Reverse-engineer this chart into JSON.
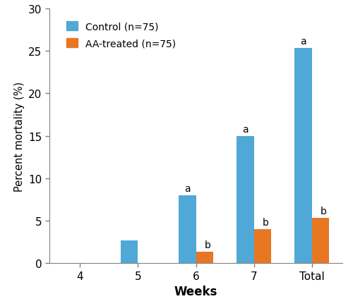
{
  "categories": [
    "4",
    "5",
    "6",
    "7",
    "Total"
  ],
  "control_values": [
    0,
    2.67,
    8.0,
    15.0,
    25.33
  ],
  "aa_values": [
    0,
    0,
    1.33,
    4.0,
    5.33
  ],
  "control_color": "#4FA8D5",
  "aa_color": "#E87722",
  "control_label": "Control (n=75)",
  "aa_label": "AA-treated (n=75)",
  "xlabel": "Weeks",
  "ylabel": "Percent mortality (%)",
  "ylim": [
    0,
    30
  ],
  "yticks": [
    0,
    5,
    10,
    15,
    20,
    25,
    30
  ],
  "bar_width": 0.3,
  "figsize": [
    5.0,
    4.35
  ],
  "dpi": 100
}
